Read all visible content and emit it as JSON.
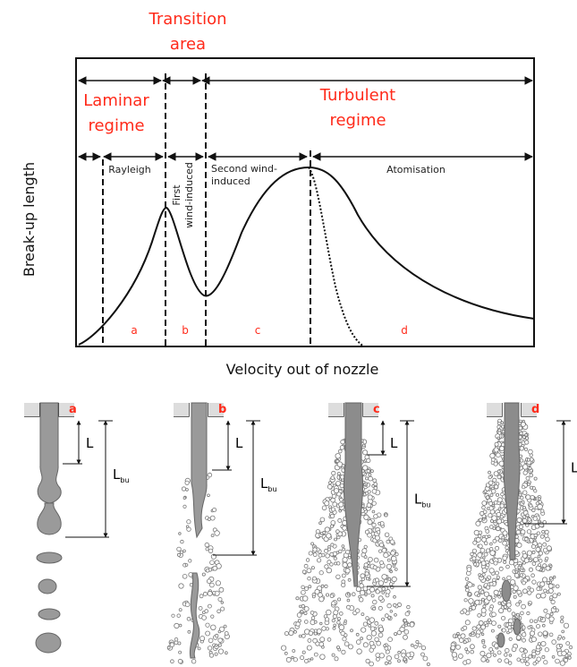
{
  "header": {
    "transition": [
      "Transition",
      "area"
    ]
  },
  "regimes": [
    {
      "lines": [
        "Laminar",
        "regime"
      ]
    },
    {
      "lines": [
        "Turbulent",
        "regime"
      ]
    }
  ],
  "sub_regimes": [
    {
      "lines": [
        "Rayleigh"
      ]
    },
    {
      "lines": [
        "First",
        "wind-induced"
      ]
    },
    {
      "lines": [
        "Second wind-",
        "induced"
      ]
    },
    {
      "lines": [
        "Atomisation"
      ]
    }
  ],
  "axes": {
    "y_label": "Break-up length",
    "x_label": "Velocity out of nozzle"
  },
  "regions": [
    "a",
    "b",
    "c",
    "d"
  ],
  "panels": [
    {
      "letter": "a",
      "short": "L",
      "long": "L",
      "long_sub": "bu"
    },
    {
      "letter": "b",
      "short": "L",
      "long": "L",
      "long_sub": "bu"
    },
    {
      "letter": "c",
      "short": "L",
      "long": "L",
      "long_sub": "bu"
    },
    {
      "letter": "d",
      "long": "L"
    }
  ]
}
